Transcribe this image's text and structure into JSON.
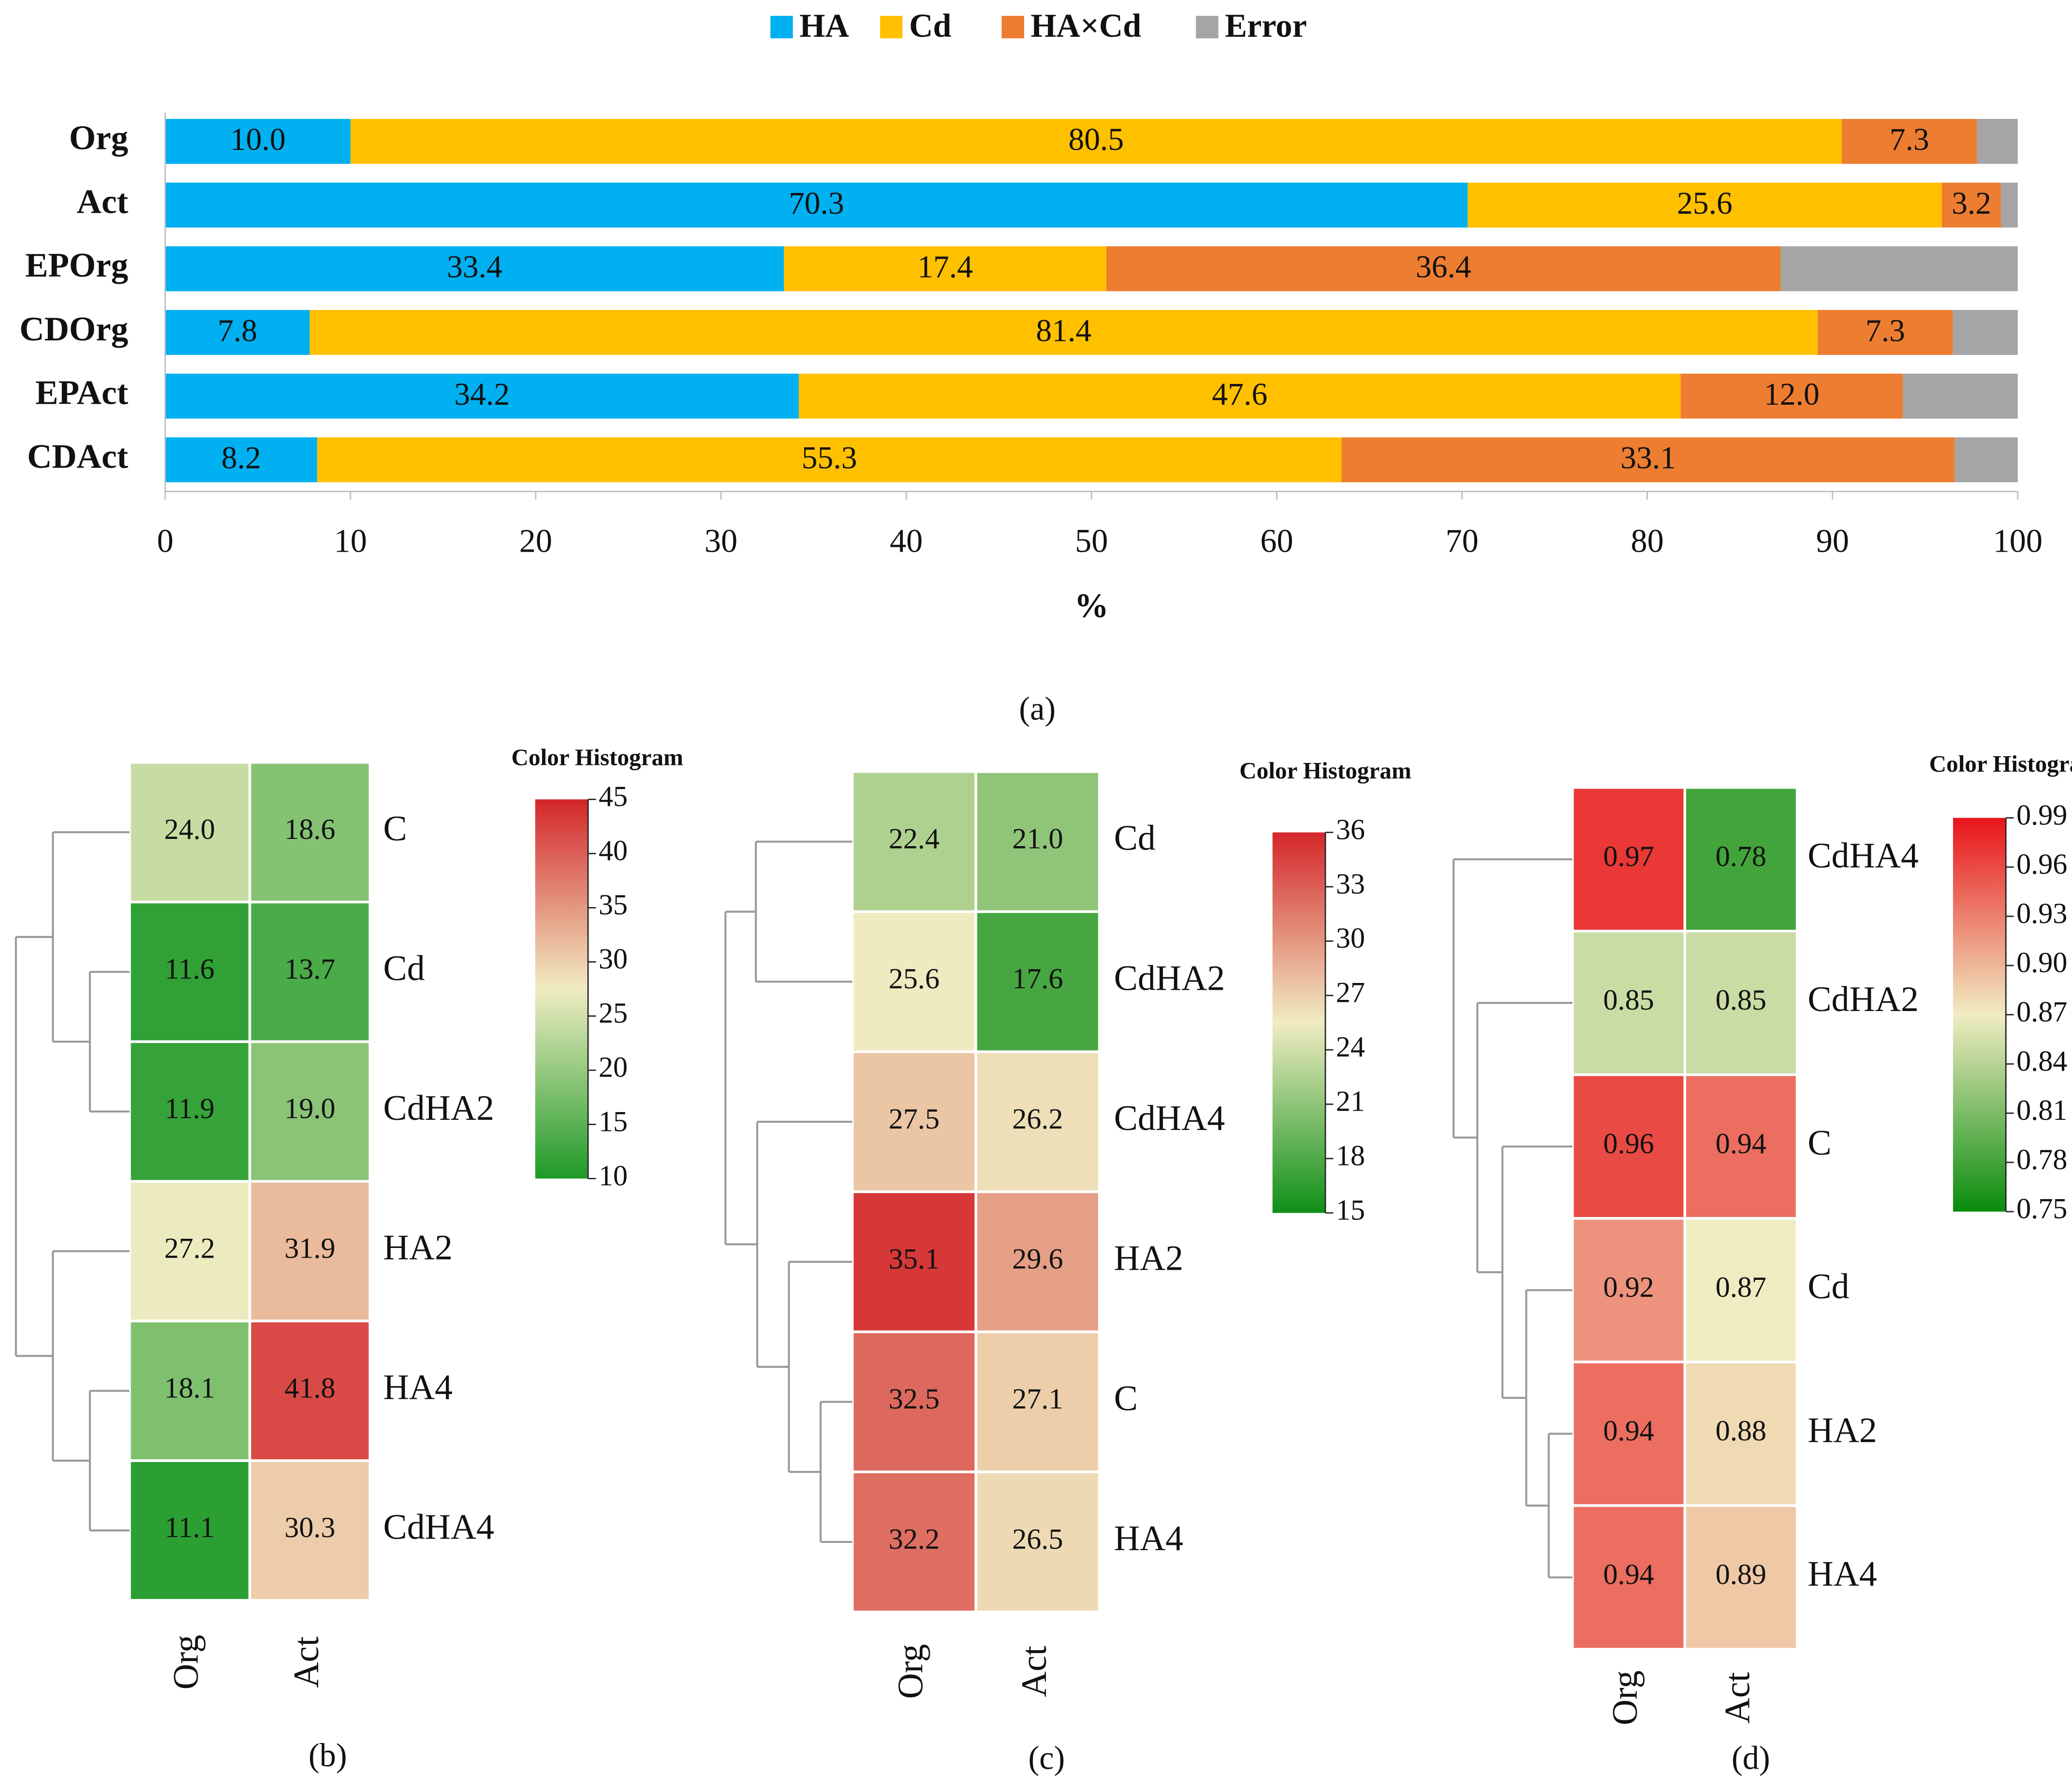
{
  "chart_data": [
    {
      "type": "stacked-barh",
      "panel_label": "(a)",
      "x_label": "%",
      "categories": [
        "Org",
        "Act",
        "EPOrg",
        "CDOrg",
        "EPAct",
        "CDAct"
      ],
      "series": [
        {
          "name": "HA",
          "color": "#00b0f0",
          "values": [
            10,
            70.3,
            33.4,
            7.8,
            34.2,
            8.2
          ],
          "value_labels": [
            "10.0",
            "70.3",
            "33.4",
            "7.8",
            "34.2",
            "8.2"
          ]
        },
        {
          "name": "Cd",
          "color": "#ffc000",
          "values": [
            80.5,
            25.6,
            17.4,
            81.4,
            47.6,
            55.3
          ],
          "value_labels": [
            "80.5",
            "25.6",
            "17.4",
            "81.4",
            "47.6",
            "55.3"
          ]
        },
        {
          "name": "HA×Cd",
          "color": "#ed7d31",
          "values": [
            7.3,
            3.2,
            36.4,
            7.3,
            12,
            33.1
          ],
          "value_labels": [
            "7.3",
            "3.2",
            "36.4",
            "7.3",
            "12.0",
            "33.1"
          ]
        },
        {
          "name": "Error",
          "color": "#a5a5a5",
          "values": [
            2.2,
            0.9,
            12.8,
            3.5,
            6.2,
            3.4
          ]
        }
      ],
      "xlim": [
        0,
        100
      ],
      "xticks": [
        0,
        10,
        20,
        30,
        40,
        50,
        60,
        70,
        80,
        90,
        100
      ],
      "legend": "top"
    },
    {
      "type": "heatmap",
      "panel_label": "(b)",
      "colorbar_title": "Color  Histogram",
      "rows": [
        "C",
        "Cd",
        "CdHA2",
        "HA2",
        "HA4",
        "CdHA4"
      ],
      "columns": [
        "Org",
        "Act"
      ],
      "values": [
        [
          24,
          18.6
        ],
        [
          11.6,
          13.7
        ],
        [
          11.9,
          19
        ],
        [
          27.2,
          31.9
        ],
        [
          18.1,
          41.8
        ],
        [
          11.1,
          30.3
        ]
      ],
      "value_labels": [
        [
          "24.0",
          "18.6"
        ],
        [
          "11.6",
          "13.7"
        ],
        [
          "11.9",
          "19.0"
        ],
        [
          "27.2",
          "31.9"
        ],
        [
          "18.1",
          "41.8"
        ],
        [
          "11.1",
          "30.3"
        ]
      ],
      "clim": [
        10,
        45
      ],
      "cticks": [
        10,
        15,
        20,
        25,
        30,
        35,
        40,
        45
      ],
      "colorscale": [
        "#1e9a28",
        "#f0ecc2",
        "#d4262a"
      ]
    },
    {
      "type": "heatmap",
      "panel_label": "(c)",
      "colorbar_title": "Color  Histogram",
      "rows": [
        "Cd",
        "CdHA2",
        "CdHA4",
        "HA2",
        "C",
        "HA4"
      ],
      "columns": [
        "Org",
        "Act"
      ],
      "values": [
        [
          22.4,
          21
        ],
        [
          25.6,
          17.6
        ],
        [
          27.5,
          26.2
        ],
        [
          35.1,
          29.6
        ],
        [
          32.5,
          27.1
        ],
        [
          32.2,
          26.5
        ]
      ],
      "value_labels": [
        [
          "22.4",
          "21.0"
        ],
        [
          "25.6",
          "17.6"
        ],
        [
          "27.5",
          "26.2"
        ],
        [
          "35.1",
          "29.6"
        ],
        [
          "32.5",
          "27.1"
        ],
        [
          "32.2",
          "26.5"
        ]
      ],
      "clim": [
        15,
        36
      ],
      "cticks": [
        15,
        18,
        21,
        24,
        27,
        30,
        33,
        36
      ],
      "colorscale": [
        "#0f8f17",
        "#f0ecc2",
        "#d4262a"
      ]
    },
    {
      "type": "heatmap",
      "panel_label": "(d)",
      "colorbar_title": "Color  Histogram",
      "rows": [
        "CdHA4",
        "CdHA2",
        "C",
        "Cd",
        "HA2",
        "HA4"
      ],
      "columns": [
        "Org",
        "Act"
      ],
      "values": [
        [
          0.97,
          0.78
        ],
        [
          0.85,
          0.85
        ],
        [
          0.96,
          0.94
        ],
        [
          0.92,
          0.87
        ],
        [
          0.94,
          0.88
        ],
        [
          0.94,
          0.89
        ]
      ],
      "clim": [
        0.75,
        0.99
      ],
      "cticks": [
        0.75,
        0.78,
        0.81,
        0.84,
        0.87,
        {
          "value": 0.9,
          "label": "0.90"
        },
        0.93,
        0.96,
        0.99
      ],
      "colorscale": [
        "#088c0c",
        "#f0ecc2",
        "#e8141a"
      ]
    }
  ]
}
